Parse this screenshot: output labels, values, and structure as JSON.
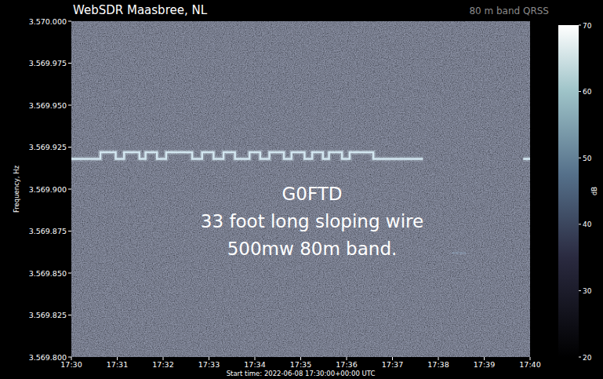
{
  "chart_data": {
    "type": "line",
    "title": "WebSDR Maasbree, NL",
    "subtitle": "80 m band QRSS",
    "x_label": "Start time: 2022-06-08 17:30:00+00:00 UTC",
    "y_label": "Frequency, Hz",
    "annotations": [
      "G0FTD",
      "33 foot long sloping wire",
      "500mw 80m band."
    ],
    "xlim": [
      "17:30",
      "17:40"
    ],
    "xticks": [
      "17:30",
      "17:31",
      "17:32",
      "17:33",
      "17:34",
      "17:35",
      "17:36",
      "17:37",
      "17:38",
      "17:39",
      "17:40"
    ],
    "ylim": [
      3569800,
      3570000
    ],
    "yticks": [
      {
        "value": 3569800,
        "label": "3.569.800"
      },
      {
        "value": 3569825,
        "label": "3.569.825"
      },
      {
        "value": 3569850,
        "label": "3.569.850"
      },
      {
        "value": 3569875,
        "label": "3.569.875"
      },
      {
        "value": 3569900,
        "label": "3.569.900"
      },
      {
        "value": 3569925,
        "label": "3.569.925"
      },
      {
        "value": 3569950,
        "label": "3.569.950"
      },
      {
        "value": 3569975,
        "label": "3.569.975"
      },
      {
        "value": 3570000,
        "label": "3.570.000"
      }
    ],
    "grid": false,
    "colorbar": {
      "range": [
        20,
        70
      ],
      "ticks": [
        20,
        30,
        40,
        50,
        60,
        70
      ],
      "label": "dB"
    },
    "series": [
      {
        "color": "#d2e6f0",
        "line_style": "solid",
        "x": [
          "17:30:00",
          "17:30:38",
          "17:30:38",
          "17:30:58",
          "17:30:58",
          "17:31:09",
          "17:31:09",
          "17:31:29",
          "17:31:29",
          "17:31:37",
          "17:31:37",
          "17:31:52",
          "17:31:52",
          "17:32:04",
          "17:32:04",
          "17:32:38",
          "17:32:38",
          "17:32:51",
          "17:32:51",
          "17:33:06",
          "17:33:06",
          "17:33:19",
          "17:33:19",
          "17:33:34",
          "17:33:34",
          "17:33:53",
          "17:33:53",
          "17:34:07",
          "17:34:07",
          "17:34:19",
          "17:34:19",
          "17:34:38",
          "17:34:38",
          "17:34:48",
          "17:34:48",
          "17:35:05",
          "17:35:05",
          "17:35:15",
          "17:35:15",
          "17:35:29",
          "17:35:29",
          "17:35:37",
          "17:35:37",
          "17:35:54",
          "17:35:54",
          "17:36:04",
          "17:36:04",
          "17:36:35",
          "17:36:35",
          "17:37:40",
          "17:38:00",
          "17:39:51",
          "17:40:00"
        ],
        "values": [
          3569918,
          3569918,
          3569922,
          3569922,
          3569918,
          3569918,
          3569922,
          3569922,
          3569918,
          3569918,
          3569922,
          3569922,
          3569918,
          3569918,
          3569922,
          3569922,
          3569918,
          3569918,
          3569922,
          3569922,
          3569918,
          3569918,
          3569922,
          3569922,
          3569918,
          3569918,
          3569922,
          3569922,
          3569918,
          3569918,
          3569922,
          3569922,
          3569918,
          3569918,
          3569922,
          3569922,
          3569918,
          3569918,
          3569922,
          3569922,
          3569918,
          3569918,
          3569922,
          3569922,
          3569918,
          3569918,
          3569922,
          3569922,
          3569918,
          3569918,
          null,
          3569918,
          3569918
        ]
      },
      {
        "color": "#8c9db2",
        "line_style": "dashed",
        "x": [
          "17:38:18",
          "17:38:36"
        ],
        "values": [
          3569862,
          3569862
        ]
      }
    ]
  }
}
